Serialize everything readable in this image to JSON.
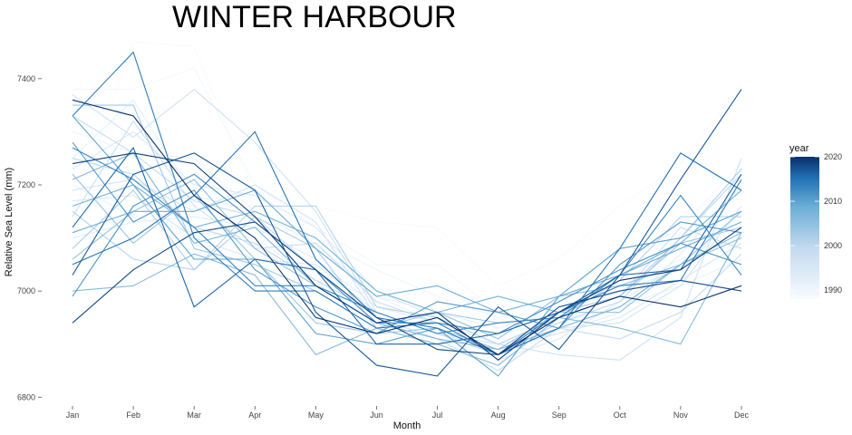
{
  "chart_data": {
    "type": "line",
    "title": "WINTER HARBOUR",
    "xlabel": "Month",
    "ylabel": "Relative Sea Level (mm)",
    "categories": [
      "Jan",
      "Feb",
      "Mar",
      "Apr",
      "May",
      "Jun",
      "Jul",
      "Aug",
      "Sep",
      "Oct",
      "Nov",
      "Dec"
    ],
    "y_ticks": [
      6800,
      7000,
      7200,
      7400
    ],
    "ylim": [
      6780,
      7480
    ],
    "grid": false,
    "legend": {
      "title": "year",
      "placement": "right",
      "type": "colorbar",
      "range": [
        1988,
        2020
      ],
      "ticks": [
        1990,
        2000,
        2010,
        2020
      ],
      "color_low": "#f7fbff",
      "color_high": "#08306b"
    },
    "series": [
      {
        "year": 1988,
        "values": [
          7140,
          7470,
          7460,
          7180,
          7160,
          7130,
          7120,
          7010,
          7060,
          7160,
          7240,
          7390
        ]
      },
      {
        "year": 1989,
        "values": [
          7380,
          7380,
          7420,
          7200,
          7120,
          7050,
          7050,
          6960,
          6980,
          7050,
          7120,
          7240
        ]
      },
      {
        "year": 1990,
        "values": [
          7300,
          7260,
          7250,
          7150,
          7100,
          7040,
          6990,
          6950,
          6960,
          7000,
          7060,
          7100
        ]
      },
      {
        "year": 1991,
        "values": [
          7200,
          7140,
          7110,
          7100,
          7020,
          6990,
          6940,
          6920,
          6940,
          6970,
          7010,
          7060
        ]
      },
      {
        "year": 1992,
        "values": [
          7250,
          7360,
          7180,
          7150,
          7090,
          6990,
          6960,
          6930,
          6960,
          7000,
          7040,
          7150
        ]
      },
      {
        "year": 1993,
        "values": [
          7100,
          7130,
          7140,
          7120,
          7060,
          6970,
          6940,
          6900,
          6920,
          6960,
          7070,
          7200
        ]
      },
      {
        "year": 1994,
        "values": [
          7230,
          7300,
          7200,
          7180,
          7120,
          7000,
          6950,
          6870,
          6910,
          6980,
          7050,
          7150
        ]
      },
      {
        "year": 1995,
        "values": [
          7170,
          7180,
          7100,
          7060,
          7050,
          6960,
          6920,
          6890,
          6920,
          6950,
          7020,
          7090
        ]
      },
      {
        "year": 1996,
        "values": [
          7190,
          7210,
          7150,
          7200,
          7130,
          6950,
          6930,
          6880,
          6930,
          6940,
          7010,
          7160
        ]
      },
      {
        "year": 1997,
        "values": [
          7370,
          7290,
          7380,
          7280,
          7150,
          6960,
          6920,
          6900,
          6880,
          6870,
          6950,
          7250
        ]
      },
      {
        "year": 1998,
        "values": [
          7140,
          7320,
          7160,
          7080,
          7090,
          6980,
          6940,
          6920,
          6960,
          6990,
          7120,
          7080
        ]
      },
      {
        "year": 1999,
        "values": [
          7330,
          7260,
          7170,
          7140,
          7040,
          6950,
          6910,
          6850,
          6930,
          6910,
          6960,
          7070
        ]
      },
      {
        "year": 2000,
        "values": [
          7250,
          7220,
          7120,
          7090,
          7020,
          6960,
          6920,
          6880,
          6940,
          6980,
          7100,
          7220
        ]
      },
      {
        "year": 2001,
        "values": [
          7150,
          7060,
          7040,
          7160,
          7160,
          6970,
          6950,
          6900,
          6950,
          7020,
          7140,
          7140
        ]
      },
      {
        "year": 2002,
        "values": [
          7080,
          7190,
          7040,
          7140,
          7080,
          6930,
          6900,
          6920,
          6960,
          6990,
          7100,
          7230
        ]
      },
      {
        "year": 2003,
        "values": [
          7350,
          7350,
          7080,
          7050,
          7000,
          6930,
          6960,
          6940,
          6950,
          6990,
          7090,
          7120
        ]
      },
      {
        "year": 2004,
        "values": [
          7220,
          7090,
          7180,
          7060,
          6940,
          6920,
          6930,
          6890,
          6960,
          6960,
          7050,
          7150
        ]
      },
      {
        "year": 2005,
        "values": [
          7060,
          7150,
          7210,
          7080,
          7010,
          6940,
          6960,
          6910,
          6990,
          7010,
          7050,
          7100
        ]
      },
      {
        "year": 2006,
        "values": [
          7000,
          7010,
          7070,
          7030,
          6880,
          6930,
          6900,
          6860,
          6950,
          6930,
          6900,
          7110
        ]
      },
      {
        "year": 2007,
        "values": [
          7210,
          7260,
          7090,
          7120,
          7010,
          6940,
          6910,
          6890,
          6930,
          6970,
          7050,
          7110
        ]
      },
      {
        "year": 2008,
        "values": [
          7160,
          7200,
          7120,
          7150,
          7100,
          7000,
          6960,
          6990,
          6960,
          7030,
          7090,
          7190
        ]
      },
      {
        "year": 2009,
        "values": [
          7110,
          7150,
          7150,
          7190,
          7080,
          6990,
          7010,
          6960,
          6990,
          7030,
          7080,
          7130
        ]
      },
      {
        "year": 2010,
        "values": [
          7330,
          7200,
          7060,
          7060,
          6920,
          6900,
          6930,
          6840,
          6990,
          7080,
          7100,
          7150
        ]
      },
      {
        "year": 2011,
        "values": [
          7280,
          7130,
          7190,
          7040,
          6970,
          6920,
          6980,
          6960,
          6930,
          7050,
          7130,
          7110
        ]
      },
      {
        "year": 2012,
        "values": [
          6990,
          7160,
          7220,
          7130,
          7040,
          6940,
          6940,
          6920,
          6980,
          7040,
          7090,
          7050
        ]
      },
      {
        "year": 2013,
        "values": [
          7270,
          7210,
          7120,
          7010,
          7010,
          6960,
          6920,
          6940,
          6950,
          7030,
          7180,
          7030
        ]
      },
      {
        "year": 2014,
        "values": [
          7330,
          7450,
          7100,
          7000,
          7000,
          6930,
          6940,
          6880,
          6960,
          7010,
          7020,
          7210
        ]
      },
      {
        "year": 2015,
        "values": [
          7050,
          7100,
          7180,
          7300,
          7060,
          6950,
          6930,
          6880,
          6930,
          7080,
          7260,
          7190
        ]
      },
      {
        "year": 2016,
        "values": [
          7120,
          7270,
          6970,
          7060,
          7040,
          6900,
          6900,
          6920,
          6960,
          7030,
          7040,
          7220
        ]
      },
      {
        "year": 2017,
        "values": [
          7030,
          7220,
          7260,
          7190,
          6960,
          6860,
          6840,
          6970,
          6890,
          7030,
          7210,
          7380
        ]
      },
      {
        "year": 2018,
        "values": [
          6940,
          7040,
          7110,
          7130,
          7040,
          6950,
          6890,
          6880,
          6970,
          7000,
          7020,
          7000
        ]
      },
      {
        "year": 2019,
        "values": [
          7240,
          7260,
          7240,
          7140,
          7010,
          6940,
          6960,
          6870,
          6960,
          7020,
          7040,
          7120
        ]
      },
      {
        "year": 2020,
        "values": [
          7360,
          7330,
          7180,
          7100,
          6950,
          6920,
          6950,
          6880,
          6950,
          6990,
          6970,
          7010
        ]
      }
    ]
  }
}
